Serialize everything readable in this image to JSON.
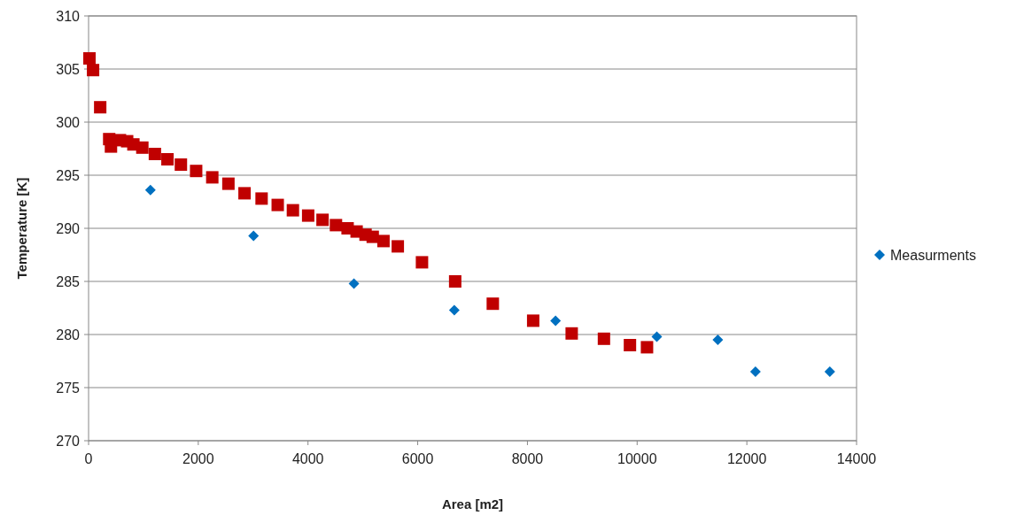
{
  "chart_data": {
    "type": "scatter",
    "xlabel": "Area [m2]",
    "ylabel": "Temperature [K]",
    "xlim": [
      0,
      14000
    ],
    "xticks": [
      0,
      2000,
      4000,
      6000,
      8000,
      10000,
      12000,
      14000
    ],
    "ylim": [
      270,
      310
    ],
    "yticks": [
      270,
      275,
      280,
      285,
      290,
      295,
      300,
      305,
      310
    ],
    "grid": "y",
    "legend": "right",
    "series": [
      {
        "color": "#c00000",
        "marker": "square",
        "x": [
          16,
          82,
          212,
          376,
          408,
          572,
          703,
          817,
          980,
          1209,
          1438,
          1683,
          1961,
          2255,
          2549,
          2843,
          3154,
          3448,
          3725,
          4003,
          4265,
          4510,
          4722,
          4886,
          5049,
          5180,
          5376,
          5637,
          6078,
          6683,
          7369,
          8105,
          8807,
          9395,
          9869,
          10180
        ],
        "values": [
          306.0,
          304.9,
          301.4,
          298.4,
          297.7,
          298.3,
          298.2,
          297.9,
          297.6,
          297.0,
          296.5,
          296.0,
          295.4,
          294.8,
          294.2,
          293.3,
          292.8,
          292.2,
          291.7,
          291.2,
          290.8,
          290.3,
          290.0,
          289.7,
          289.4,
          289.2,
          288.8,
          288.3,
          286.8,
          285.0,
          282.9,
          281.3,
          280.1,
          279.6,
          279.0,
          278.8
        ]
      },
      {
        "name": "Measurments",
        "color": "#0070c0",
        "marker": "diamond",
        "x": [
          1127,
          3007,
          4837,
          6667,
          8513,
          10359,
          11471,
          12157,
          13513
        ],
        "values": [
          293.6,
          289.3,
          284.8,
          282.3,
          281.3,
          279.8,
          279.5,
          276.5,
          276.5
        ]
      }
    ]
  }
}
